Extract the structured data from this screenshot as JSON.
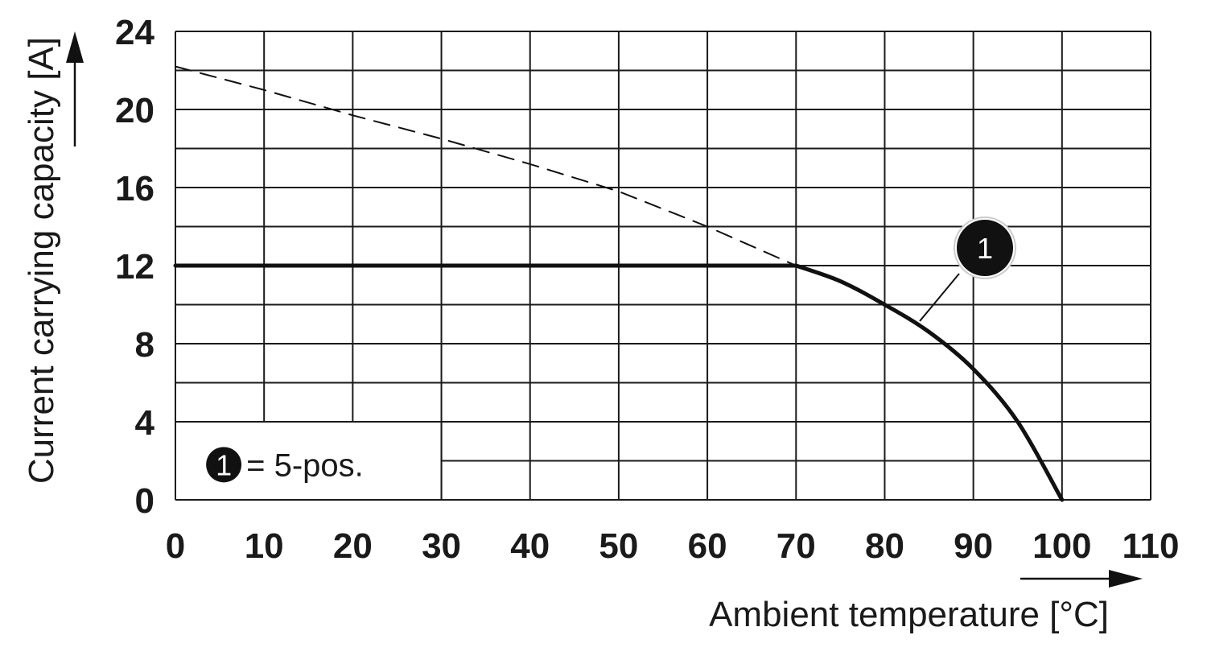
{
  "chart_data": {
    "type": "line",
    "xlabel": "Ambient temperature [°C]",
    "ylabel": "Current carrying capacity [A]",
    "xlim": [
      0,
      110
    ],
    "ylim": [
      0,
      24
    ],
    "x_ticks": [
      0,
      10,
      20,
      30,
      40,
      50,
      60,
      70,
      80,
      90,
      100,
      110
    ],
    "y_ticks": [
      0,
      4,
      8,
      12,
      16,
      20,
      24
    ],
    "grid": true,
    "series": [
      {
        "name": "5-pos.",
        "marker": "1",
        "style": "solid",
        "points": [
          [
            0,
            12
          ],
          [
            70,
            12
          ],
          [
            75,
            11.2
          ],
          [
            80,
            10.0
          ],
          [
            85,
            8.6
          ],
          [
            90,
            6.7
          ],
          [
            95,
            4.0
          ],
          [
            100,
            0
          ]
        ]
      },
      {
        "style": "dashed",
        "points": [
          [
            0,
            22.2
          ],
          [
            10,
            21.0
          ],
          [
            20,
            19.7
          ],
          [
            30,
            18.5
          ],
          [
            40,
            17.2
          ],
          [
            50,
            15.8
          ],
          [
            60,
            14.0
          ],
          [
            70,
            12
          ]
        ]
      }
    ],
    "legend": {
      "marker": "1",
      "text": "= 5-pos.",
      "position": "bottom-left"
    }
  }
}
